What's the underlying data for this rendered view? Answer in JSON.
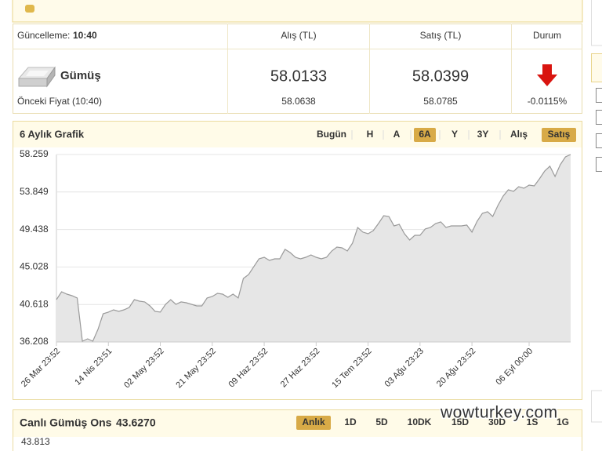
{
  "top_table": {
    "update_label": "Güncelleme:",
    "update_time": "10:40",
    "columns": [
      "Alış (TL)",
      "Satış (TL)",
      "Durum"
    ],
    "name": "Gümüş",
    "buy": "58.0133",
    "sell": "58.0399",
    "prev_label": "Önceki Fiyat (10:40)",
    "prev_buy": "58.0638",
    "prev_sell": "58.0785",
    "change": "-0.0115%"
  },
  "chart_panel": {
    "title": "6 Aylık Grafik",
    "ranges": [
      {
        "label": "Bugün"
      },
      {
        "label": "H"
      },
      {
        "label": "A"
      },
      {
        "label": "6A",
        "active": true
      },
      {
        "label": "Y"
      },
      {
        "label": "3Y"
      }
    ],
    "sides": [
      {
        "label": "Alış"
      },
      {
        "label": "Satış",
        "active": true
      }
    ]
  },
  "chart_data": {
    "type": "area",
    "color": "#9a9a9a",
    "fill": "#e6e6e6",
    "grid": true,
    "ylim": [
      36.208,
      58.259
    ],
    "yticks": [
      36.208,
      40.618,
      45.028,
      49.438,
      53.849,
      58.259
    ],
    "categories": [
      "26 Mar 23:52",
      null,
      null,
      null,
      null,
      null,
      null,
      null,
      null,
      null,
      "14 Nis 23:51",
      null,
      null,
      null,
      null,
      null,
      null,
      null,
      null,
      null,
      "02 May 23:52",
      null,
      null,
      null,
      null,
      null,
      null,
      null,
      null,
      null,
      "21 May 23:52",
      null,
      null,
      null,
      null,
      null,
      null,
      null,
      null,
      null,
      "09 Haz 23:52",
      null,
      null,
      null,
      null,
      null,
      null,
      null,
      null,
      null,
      "27 Haz 23:52",
      null,
      null,
      null,
      null,
      null,
      null,
      null,
      null,
      null,
      "15 Tem 23:52",
      null,
      null,
      null,
      null,
      null,
      null,
      null,
      null,
      null,
      "03 Ağu 23:23",
      null,
      null,
      null,
      null,
      null,
      null,
      null,
      null,
      null,
      "20 Ağu 23:52",
      null,
      null,
      null,
      null,
      null,
      null,
      null,
      null,
      null,
      null,
      "06 Eyl 00:00",
      null,
      null,
      null,
      null,
      null,
      null,
      null,
      null
    ],
    "values": [
      41.19,
      42.11,
      41.84,
      41.65,
      41.38,
      36.3,
      36.58,
      36.3,
      37.69,
      39.53,
      39.72,
      39.99,
      39.81,
      39.99,
      40.27,
      41.19,
      41.01,
      40.92,
      40.45,
      39.81,
      39.72,
      40.64,
      41.19,
      40.64,
      40.92,
      40.82,
      40.64,
      40.45,
      40.45,
      41.38,
      41.56,
      41.93,
      41.84,
      41.47,
      41.84,
      41.38,
      43.68,
      44.14,
      45.07,
      45.99,
      46.17,
      45.8,
      45.99,
      45.99,
      47.1,
      46.73,
      46.17,
      45.99,
      46.17,
      46.45,
      46.17,
      45.99,
      46.17,
      46.91,
      47.37,
      47.28,
      46.91,
      47.83,
      49.68,
      49.13,
      48.94,
      49.31,
      50.14,
      51.06,
      50.97,
      49.86,
      50.05,
      48.94,
      48.2,
      48.76,
      48.76,
      49.5,
      49.68,
      50.14,
      50.33,
      49.68,
      49.86,
      49.86,
      49.86,
      49.96,
      49.13,
      50.42,
      51.34,
      51.53,
      50.97,
      52.26,
      53.37,
      54.11,
      53.92,
      54.48,
      54.29,
      54.66,
      54.57,
      55.4,
      56.32,
      56.88,
      55.68,
      57.06,
      57.98,
      58.26
    ]
  },
  "live_panel": {
    "title": "Canlı Gümüş Ons",
    "price": "43.6270",
    "first_tick": "43.813",
    "buttons": [
      {
        "label": "Anlık",
        "active": true
      },
      {
        "label": "1D"
      },
      {
        "label": "5D"
      },
      {
        "label": "10DK"
      },
      {
        "label": "15D",
        "disabled": true
      },
      {
        "label": "30D",
        "disabled": true
      },
      {
        "label": "1S",
        "disabled": true
      },
      {
        "label": "1G",
        "disabled": true
      }
    ]
  },
  "watermark": "wowturkey.com"
}
